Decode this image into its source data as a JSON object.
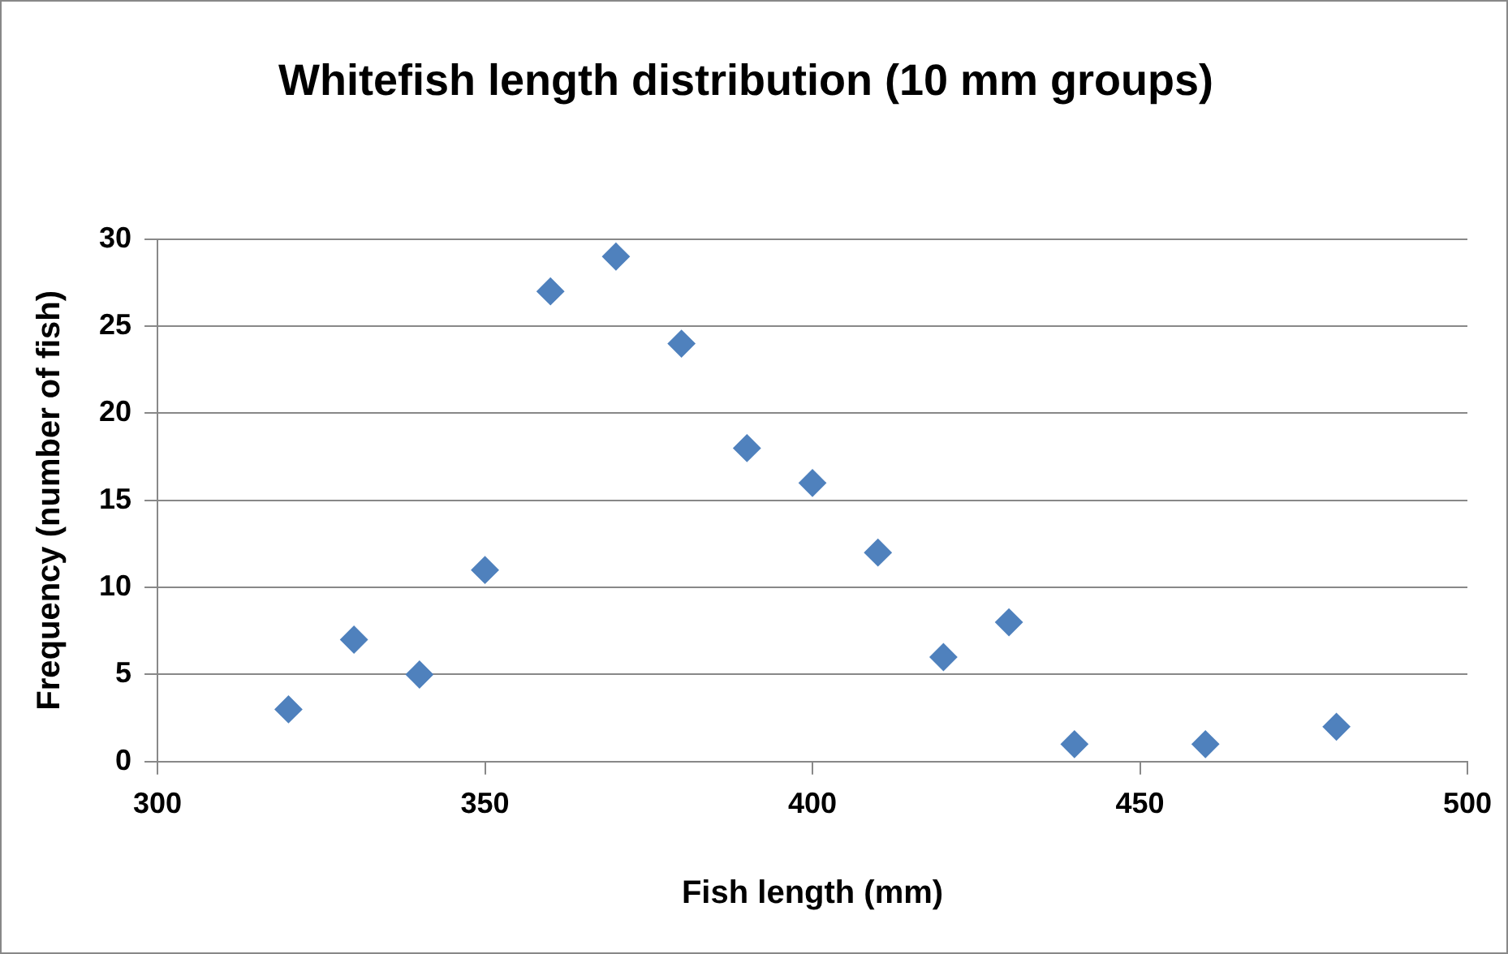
{
  "chart_data": {
    "type": "scatter",
    "title": "Whitefish length distribution (10 mm groups)",
    "xlabel": "Fish length (mm)",
    "ylabel": "Frequency (number of fish)",
    "x": [
      320,
      330,
      340,
      350,
      360,
      370,
      380,
      390,
      400,
      410,
      420,
      430,
      440,
      460,
      480
    ],
    "values": [
      3,
      7,
      5,
      11,
      27,
      29,
      24,
      18,
      16,
      12,
      6,
      8,
      1,
      1,
      2
    ],
    "color": "#4f81bd",
    "marker": "diamond",
    "xlim": [
      300,
      500
    ],
    "xticks": [
      300,
      350,
      400,
      450,
      500
    ],
    "ylim": [
      0,
      30
    ],
    "yticks": [
      0,
      5,
      10,
      15,
      20,
      25,
      30
    ],
    "grid": "y",
    "legend": false
  }
}
